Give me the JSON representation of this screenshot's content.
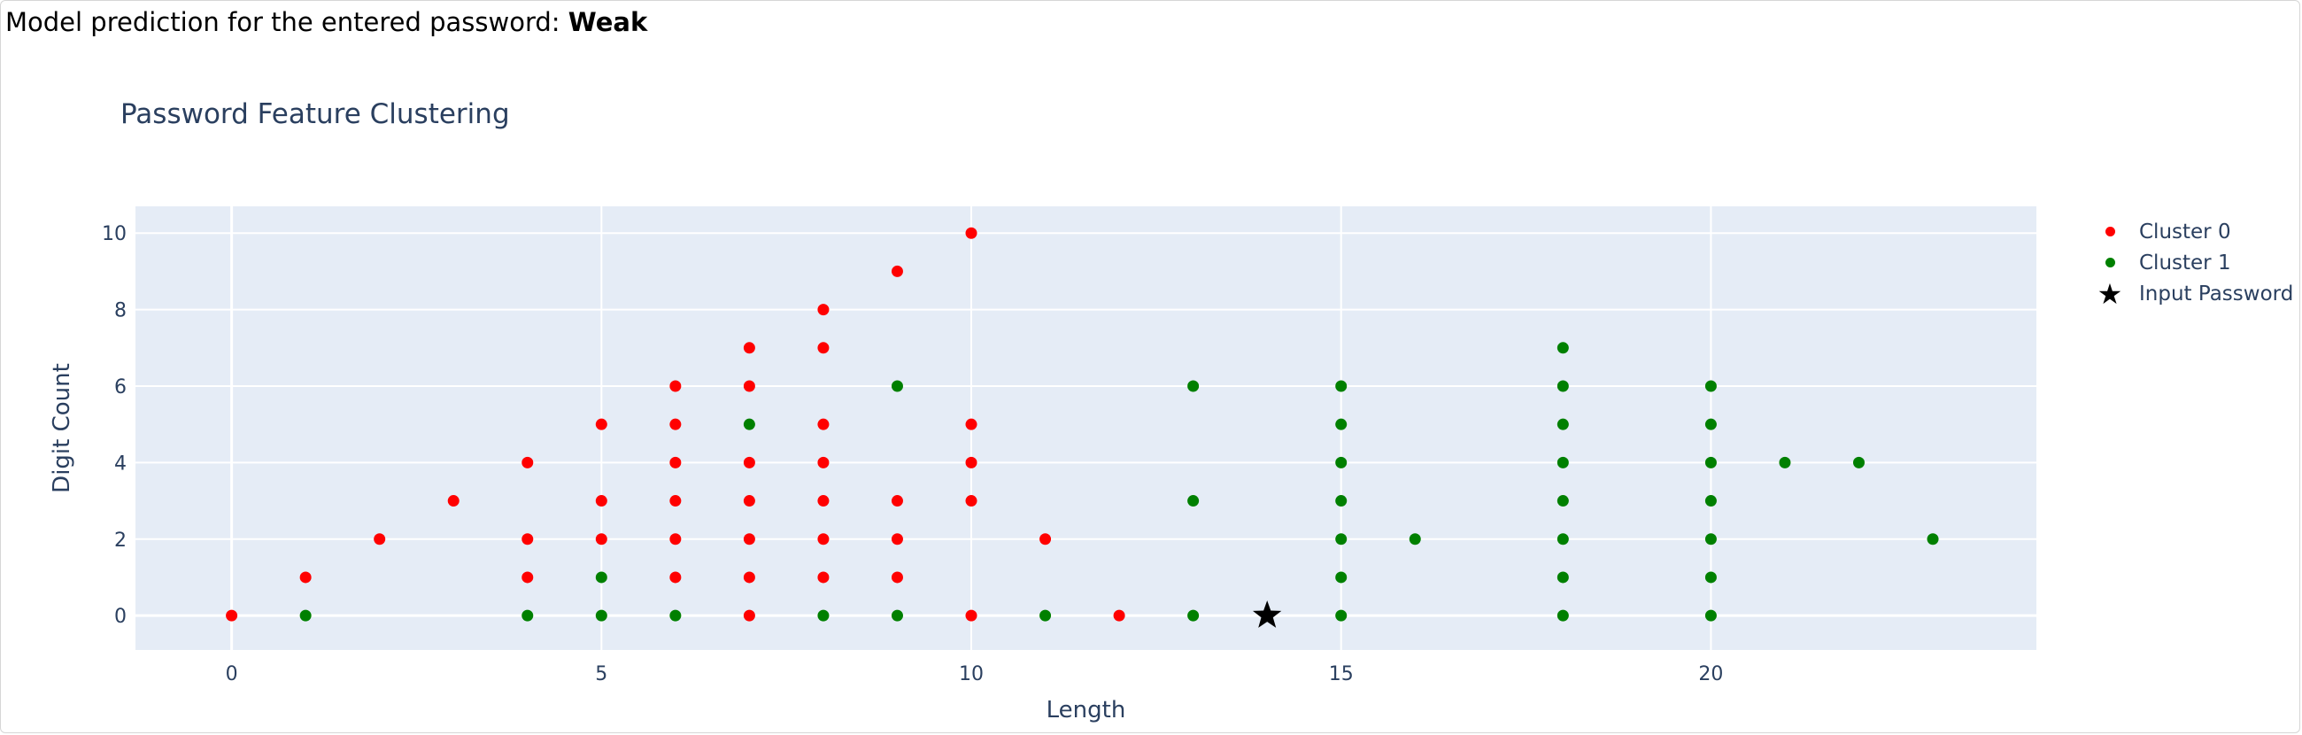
{
  "header": {
    "prediction_text": "Model prediction for the entered password: ",
    "prediction_value": "Weak"
  },
  "chart_data": {
    "type": "scatter",
    "title": "Password Feature Clustering",
    "xlabel": "Length",
    "ylabel": "Digit Count",
    "xlim": [
      -1.3,
      24.4
    ],
    "ylim": [
      -0.9,
      10.7
    ],
    "x_ticks": [
      0,
      5,
      10,
      15,
      20
    ],
    "y_ticks": [
      0,
      2,
      4,
      6,
      8,
      10
    ],
    "grid": true,
    "legend_position": "top-right",
    "series": [
      {
        "name": "Cluster 0",
        "color": "#ff0000",
        "marker": "circle",
        "points": [
          [
            0,
            0
          ],
          [
            1,
            1
          ],
          [
            2,
            2
          ],
          [
            3,
            3
          ],
          [
            4,
            1
          ],
          [
            4,
            2
          ],
          [
            4,
            4
          ],
          [
            5,
            2
          ],
          [
            5,
            3
          ],
          [
            5,
            5
          ],
          [
            6,
            1
          ],
          [
            6,
            2
          ],
          [
            6,
            3
          ],
          [
            6,
            4
          ],
          [
            6,
            5
          ],
          [
            6,
            6
          ],
          [
            7,
            0
          ],
          [
            7,
            1
          ],
          [
            7,
            2
          ],
          [
            7,
            3
          ],
          [
            7,
            4
          ],
          [
            7,
            6
          ],
          [
            7,
            7
          ],
          [
            8,
            1
          ],
          [
            8,
            2
          ],
          [
            8,
            3
          ],
          [
            8,
            4
          ],
          [
            8,
            5
          ],
          [
            8,
            7
          ],
          [
            8,
            8
          ],
          [
            9,
            1
          ],
          [
            9,
            2
          ],
          [
            9,
            3
          ],
          [
            9,
            9
          ],
          [
            10,
            0
          ],
          [
            10,
            3
          ],
          [
            10,
            4
          ],
          [
            10,
            5
          ],
          [
            10,
            10
          ],
          [
            11,
            2
          ],
          [
            12,
            0
          ]
        ]
      },
      {
        "name": "Cluster 1",
        "color": "#008000",
        "marker": "circle",
        "points": [
          [
            1,
            0
          ],
          [
            4,
            0
          ],
          [
            5,
            0
          ],
          [
            5,
            1
          ],
          [
            6,
            0
          ],
          [
            7,
            5
          ],
          [
            8,
            0
          ],
          [
            9,
            0
          ],
          [
            9,
            6
          ],
          [
            11,
            0
          ],
          [
            13,
            0
          ],
          [
            13,
            3
          ],
          [
            13,
            6
          ],
          [
            15,
            0
          ],
          [
            15,
            1
          ],
          [
            15,
            2
          ],
          [
            15,
            3
          ],
          [
            15,
            4
          ],
          [
            15,
            5
          ],
          [
            15,
            6
          ],
          [
            16,
            2
          ],
          [
            18,
            0
          ],
          [
            18,
            1
          ],
          [
            18,
            2
          ],
          [
            18,
            3
          ],
          [
            18,
            4
          ],
          [
            18,
            5
          ],
          [
            18,
            6
          ],
          [
            18,
            7
          ],
          [
            20,
            0
          ],
          [
            20,
            1
          ],
          [
            20,
            2
          ],
          [
            20,
            3
          ],
          [
            20,
            4
          ],
          [
            20,
            5
          ],
          [
            20,
            6
          ],
          [
            21,
            4
          ],
          [
            22,
            4
          ],
          [
            23,
            2
          ]
        ]
      },
      {
        "name": "Input Password",
        "color": "#000000",
        "marker": "star",
        "points": [
          [
            14,
            0
          ]
        ]
      }
    ]
  }
}
